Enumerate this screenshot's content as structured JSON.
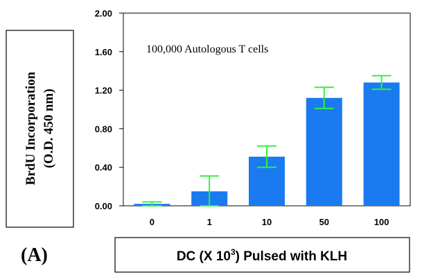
{
  "chart_data": {
    "type": "bar",
    "categories": [
      "0",
      "1",
      "10",
      "50",
      "100"
    ],
    "values": [
      0.02,
      0.15,
      0.51,
      1.12,
      1.28
    ],
    "error": [
      0.02,
      0.16,
      0.11,
      0.11,
      0.07
    ],
    "ylim": [
      0,
      2.0
    ],
    "yticks": [
      "0.00",
      "0.40",
      "0.80",
      "1.20",
      "1.60",
      "2.00"
    ],
    "ylabel_line1": "BrdU Incorporation",
    "ylabel_line2": "(O.D. 450 nm)",
    "xlabel_pre": "DC (X 10",
    "xlabel_sup": "3",
    "xlabel_post": ") Pulsed with KLH",
    "annotation": "100,000 Autologous T cells",
    "panel_label": "(A)",
    "colors": {
      "bar": "#1a7af0",
      "error_bar": "#33ee44"
    }
  }
}
